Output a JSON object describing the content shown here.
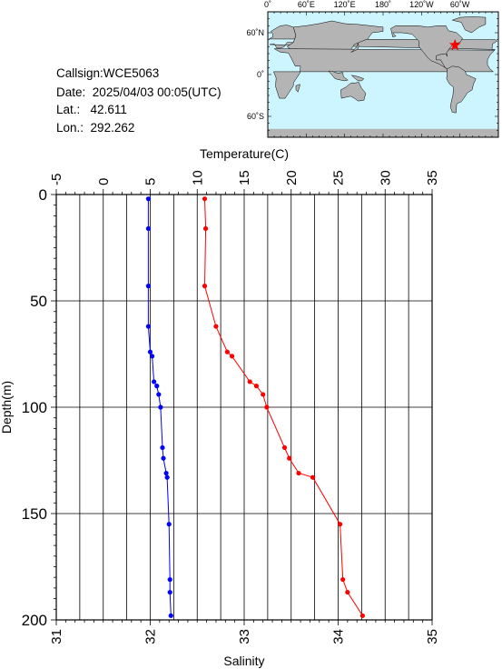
{
  "station": {
    "callsign_label": "Callsign:",
    "callsign": "WCE5063",
    "date_label": "Date:",
    "date": "2025/04/03 00:05(UTC)",
    "lat_label": "Lat.:",
    "lat": "42.611",
    "lon_label": "Lon.:",
    "lon": "292.262"
  },
  "map": {
    "top_ticks": [
      "0˚",
      "60˚E",
      "120˚E",
      "180˚",
      "120˚W",
      "60˚W"
    ],
    "left_ticks": [
      "60˚N",
      "0˚",
      "60˚S"
    ],
    "ocean_color": "#ccf5ff",
    "land_color": "#b4b4b4",
    "marker_color": "#ff0000",
    "marker_lon": 292.262,
    "marker_lat": 42.611
  },
  "chart_data": {
    "type": "line",
    "top_axis": {
      "label": "Temperature(C)",
      "range": [
        -5,
        35
      ],
      "ticks": [
        "-5",
        "0",
        "5",
        "10",
        "15",
        "20",
        "25",
        "30",
        "35"
      ]
    },
    "bottom_axis": {
      "label": "Salinity",
      "range": [
        31,
        35
      ],
      "ticks": [
        "31",
        "32",
        "33",
        "34",
        "35"
      ]
    },
    "y_axis": {
      "label": "Depth(m)",
      "range": [
        0,
        200
      ],
      "inverted": true,
      "ticks": [
        "0",
        "50",
        "100",
        "150",
        "200"
      ]
    },
    "grid": true,
    "series": [
      {
        "axis": "temperature",
        "color": "#ff0000",
        "points": [
          [
            10.8,
            2
          ],
          [
            10.9,
            16
          ],
          [
            10.8,
            43
          ],
          [
            12.0,
            62
          ],
          [
            13.2,
            74
          ],
          [
            13.7,
            76
          ],
          [
            15.6,
            88
          ],
          [
            16.3,
            90
          ],
          [
            17.0,
            94
          ],
          [
            17.4,
            100
          ],
          [
            19.3,
            119
          ],
          [
            19.8,
            124
          ],
          [
            20.8,
            131
          ],
          [
            22.3,
            133
          ],
          [
            25.2,
            155
          ],
          [
            25.5,
            181
          ],
          [
            26.0,
            187
          ],
          [
            27.6,
            198
          ]
        ]
      },
      {
        "axis": "salinity",
        "color": "#0000ff",
        "points": [
          [
            31.98,
            2
          ],
          [
            31.98,
            16
          ],
          [
            31.98,
            43
          ],
          [
            31.98,
            62
          ],
          [
            32.0,
            74
          ],
          [
            32.02,
            76
          ],
          [
            32.04,
            88
          ],
          [
            32.07,
            90
          ],
          [
            32.09,
            94
          ],
          [
            32.11,
            100
          ],
          [
            32.13,
            119
          ],
          [
            32.14,
            124
          ],
          [
            32.17,
            131
          ],
          [
            32.18,
            133
          ],
          [
            32.2,
            155
          ],
          [
            32.21,
            181
          ],
          [
            32.21,
            187
          ],
          [
            32.22,
            198
          ]
        ]
      }
    ]
  }
}
